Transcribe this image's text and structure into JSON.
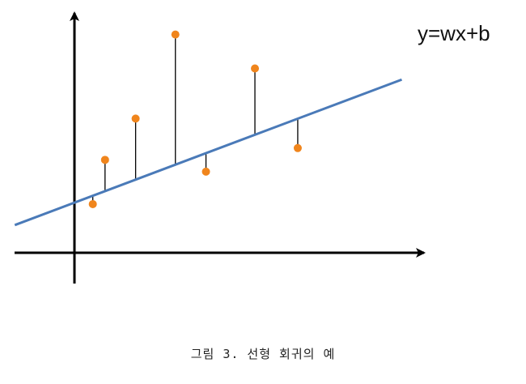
{
  "figure": {
    "equation_label": "y=wx+b",
    "caption": "그림 3. 선형 회귀의 예",
    "colors": {
      "axis": "#000000",
      "regression_line": "#4a7ab8",
      "data_point": "#f0851c",
      "residual": "#000000"
    },
    "regression_line": {
      "slope": 0.39,
      "intercept": 3.4
    },
    "points": [
      {
        "x": 1.2,
        "y": 3.3
      },
      {
        "x": 2.0,
        "y": 6.3
      },
      {
        "x": 4.0,
        "y": 9.1
      },
      {
        "x": 6.6,
        "y": 14.8
      },
      {
        "x": 8.6,
        "y": 5.5
      },
      {
        "x": 11.8,
        "y": 12.5
      },
      {
        "x": 14.6,
        "y": 7.1
      }
    ]
  }
}
